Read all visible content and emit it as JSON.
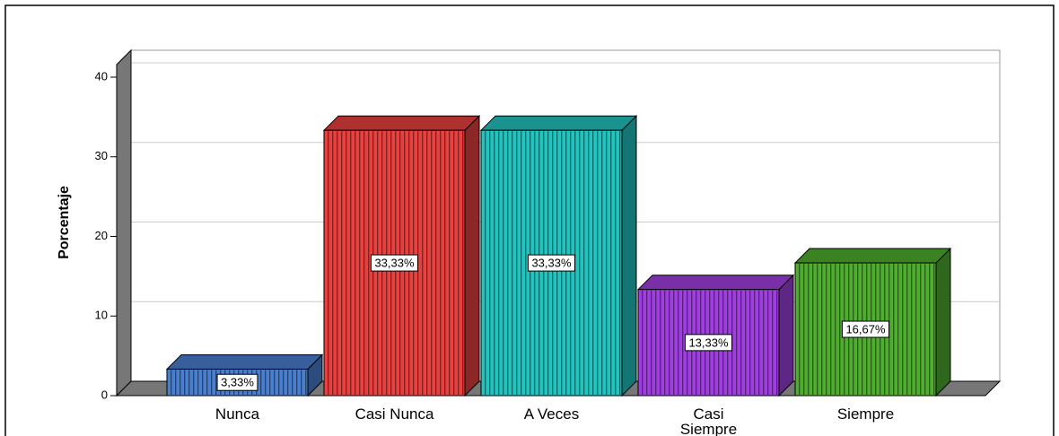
{
  "chart_data": {
    "type": "bar3d",
    "y_label": "Porcentaje",
    "categories": [
      "Nunca",
      "Casi Nunca",
      "A Veces",
      "Casi Siempre",
      "Siempre"
    ],
    "values": [
      3.33,
      33.33,
      33.33,
      13.33,
      16.67
    ],
    "value_labels": [
      "3,33%",
      "33,33%",
      "33,33%",
      "13,33%",
      "16,67%"
    ],
    "colors": [
      "#4a7fd0",
      "#e8413f",
      "#22c4c0",
      "#a03fe0",
      "#4fad2f"
    ],
    "ylim": [
      0,
      40
    ],
    "yticks": [
      0,
      10,
      20,
      30,
      40
    ],
    "grid": true
  }
}
